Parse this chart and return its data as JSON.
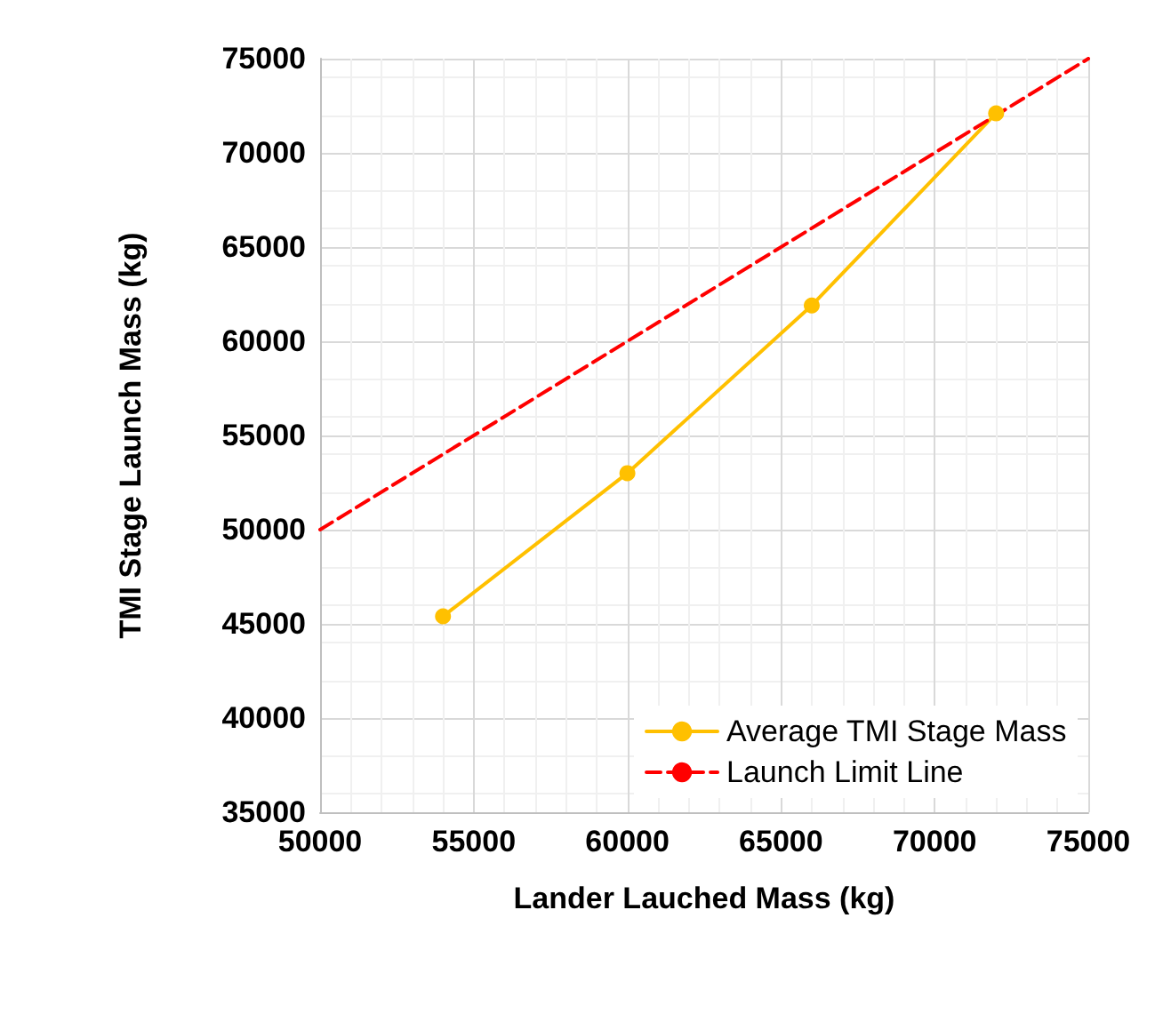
{
  "chart_data": {
    "type": "line",
    "xlabel": "Lander Lauched Mass (kg)",
    "ylabel": "TMI Stage Launch Mass (kg)",
    "xlim": [
      50000,
      75000
    ],
    "xticks": [
      50000,
      55000,
      60000,
      65000,
      70000,
      75000
    ],
    "ylim": [
      35000,
      75000
    ],
    "yticks": [
      35000,
      40000,
      45000,
      50000,
      55000,
      60000,
      65000,
      70000,
      75000
    ],
    "grid": true,
    "legend": "bottom right",
    "series": [
      {
        "name": "Average TMI Stage Mass",
        "color": "#ffc000",
        "x": [
          54000,
          60000,
          66000,
          72000
        ],
        "values": [
          45400,
          53000,
          61900,
          72100
        ],
        "marker": "circle",
        "line_style": "solid"
      },
      {
        "name": "Launch Limit Line",
        "color": "#ff0000",
        "x": [
          50000,
          75000
        ],
        "values": [
          50000,
          75000
        ],
        "marker": "none",
        "line_style": "dashed"
      }
    ]
  }
}
